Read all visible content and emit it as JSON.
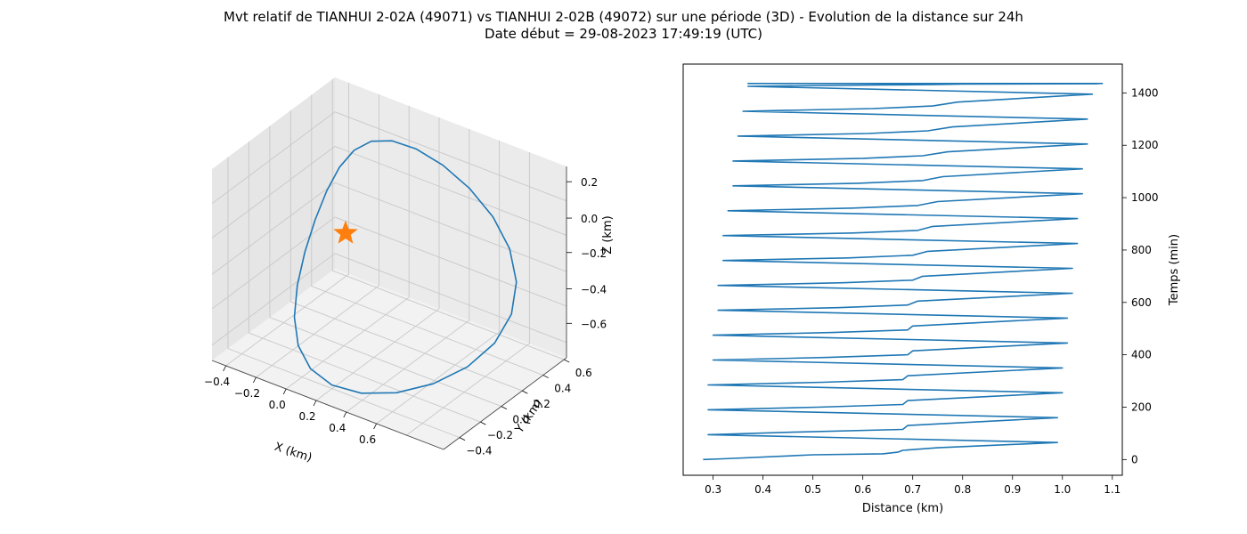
{
  "figure": {
    "title_line1": "Mvt relatif de TIANHUI 2-02A (49071) vs TIANHUI 2-02B (49072) sur une période (3D) - Evolution de la distance sur 24h",
    "title_line2": "Date début = 29-08-2023 17:49:19 (UTC)"
  },
  "chart_data": [
    {
      "type": "line3d",
      "xlabel": "X (km)",
      "ylabel": "Y (km)",
      "zlabel": "Z (km)",
      "xticks": [
        "−0.4",
        "−0.2",
        "0.0",
        "0.2",
        "0.4",
        "0.6"
      ],
      "yticks": [
        "−0.4",
        "−0.2",
        "0.0",
        "0.2",
        "0.4",
        "0.6"
      ],
      "zticks": [
        "0.2",
        "0.0",
        "−0.2",
        "−0.4",
        "−0.6"
      ],
      "xlim": [
        -0.5,
        0.7
      ],
      "ylim": [
        -0.45,
        0.7
      ],
      "zlim": [
        -0.7,
        0.3
      ],
      "grid": true,
      "marker": {
        "symbol": "star",
        "color": "#ff7f0e",
        "x": 0,
        "y": 0,
        "z": 0
      },
      "series_color": "#1f77b4",
      "orbit": {
        "cx": 0.1,
        "cy": 0.13,
        "cz": -0.2,
        "radius": 0.55
      }
    },
    {
      "type": "line",
      "xlabel": "Distance (km)",
      "ylabel": "Temps (min)",
      "xlim": [
        0.24,
        1.12
      ],
      "ylim": [
        -60,
        1510
      ],
      "xticks": [
        0.3,
        0.4,
        0.5,
        0.6,
        0.7,
        0.8,
        0.9,
        1.0,
        1.1
      ],
      "yticks": [
        0,
        200,
        400,
        600,
        800,
        1000,
        1200,
        1400
      ],
      "grid": false,
      "series_color": "#1f77b4",
      "series": {
        "x": [
          0.28,
          0.32,
          0.5,
          0.64,
          0.67,
          0.68,
          0.75,
          0.99,
          0.29,
          0.47,
          0.68,
          0.69,
          0.99,
          0.29,
          0.51,
          0.68,
          0.69,
          1.0,
          0.29,
          0.52,
          0.68,
          0.69,
          1.0,
          0.3,
          0.53,
          0.69,
          0.7,
          1.01,
          0.3,
          0.54,
          0.69,
          0.7,
          1.01,
          0.31,
          0.55,
          0.69,
          0.71,
          1.02,
          0.31,
          0.56,
          0.7,
          0.72,
          1.02,
          0.32,
          0.57,
          0.7,
          0.73,
          1.03,
          0.32,
          0.58,
          0.71,
          0.74,
          1.03,
          0.33,
          0.58,
          0.71,
          0.75,
          1.04,
          0.34,
          0.59,
          0.72,
          0.76,
          1.04,
          0.34,
          0.6,
          0.72,
          0.77,
          1.05,
          0.35,
          0.61,
          0.73,
          0.78,
          1.05,
          0.36,
          0.62,
          0.74,
          0.79,
          1.06,
          0.37,
          0.63,
          0.75,
          0.8,
          1.07,
          0.37,
          0.64,
          0.75,
          0.81,
          1.08,
          0.38,
          0.45,
          0.5
        ],
        "y": [
          0,
          3,
          18,
          22,
          28,
          35,
          45,
          65,
          95,
          105,
          115,
          130,
          160,
          190,
          200,
          210,
          225,
          255,
          285,
          295,
          305,
          320,
          350,
          380,
          390,
          400,
          415,
          445,
          475,
          485,
          495,
          510,
          540,
          570,
          580,
          590,
          605,
          635,
          665,
          675,
          685,
          700,
          730,
          760,
          770,
          780,
          795,
          825,
          855,
          865,
          875,
          890,
          920,
          950,
          960,
          970,
          985,
          1015,
          1045,
          1055,
          1065,
          1080,
          1110,
          1140,
          1150,
          1160,
          1175,
          1205,
          1235,
          1245,
          1255,
          1270,
          1300,
          1330,
          1340,
          1350,
          1365,
          1395,
          1425,
          1430,
          1432,
          1434,
          1435,
          1436,
          1436,
          1436,
          1436,
          1436,
          1436,
          1436,
          1436
        ]
      }
    }
  ]
}
